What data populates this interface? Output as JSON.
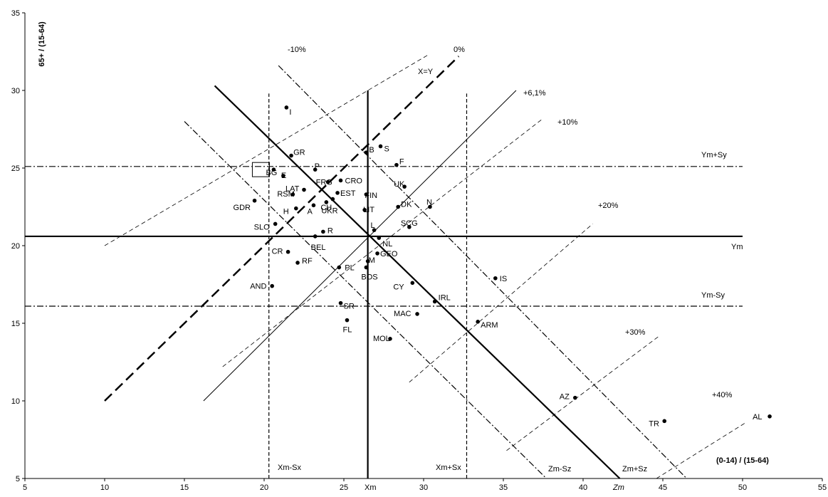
{
  "chart_data": {
    "type": "scatter",
    "xlabel": "(0-14) / (15-64)",
    "ylabel": "65+ / (15-64)",
    "xlim": [
      5,
      55
    ],
    "ylim": [
      5,
      35
    ],
    "x_ticks": [
      5,
      10,
      15,
      20,
      25,
      30,
      35,
      40,
      45,
      50,
      55
    ],
    "y_ticks": [
      5,
      10,
      15,
      20,
      25,
      30,
      35
    ],
    "grid": false,
    "means": {
      "Xm": 26.5,
      "Ym": 20.6,
      "Sx": 6.2,
      "Sy": 4.5
    },
    "points": [
      {
        "label": "I",
        "x": 21.4,
        "y": 28.9
      },
      {
        "label": "GR",
        "x": 21.7,
        "y": 25.8
      },
      {
        "label": "BG",
        "x": 20.6,
        "y": 24.9
      },
      {
        "label": "E",
        "x": 21.2,
        "y": 24.5
      },
      {
        "label": "P",
        "x": 23.2,
        "y": 24.9
      },
      {
        "label": "CRO",
        "x": 24.8,
        "y": 24.2
      },
      {
        "label": "FRG",
        "x": 24.0,
        "y": 24.1
      },
      {
        "label": "LAT",
        "x": 22.5,
        "y": 23.6
      },
      {
        "label": "EST",
        "x": 24.6,
        "y": 23.4
      },
      {
        "label": "RSM",
        "x": 21.8,
        "y": 23.3
      },
      {
        "label": "GDR",
        "x": 19.4,
        "y": 22.9
      },
      {
        "label": "H",
        "x": 22.0,
        "y": 22.4
      },
      {
        "label": "A",
        "x": 23.1,
        "y": 22.6
      },
      {
        "label": "CH",
        "x": 23.9,
        "y": 22.8
      },
      {
        "label": "UKR",
        "x": 24.3,
        "y": 23.0
      },
      {
        "label": "SLO",
        "x": 20.7,
        "y": 21.4
      },
      {
        "label": "R",
        "x": 23.7,
        "y": 20.9
      },
      {
        "label": "BEL",
        "x": 23.2,
        "y": 20.6
      },
      {
        "label": "CR",
        "x": 21.5,
        "y": 19.6
      },
      {
        "label": "RF",
        "x": 22.1,
        "y": 18.9
      },
      {
        "label": "PL",
        "x": 24.7,
        "y": 18.6
      },
      {
        "label": "AND",
        "x": 20.5,
        "y": 17.4
      },
      {
        "label": "S",
        "x": 27.3,
        "y": 26.4
      },
      {
        "label": "B",
        "x": 26.4,
        "y": 26.0
      },
      {
        "label": "F",
        "x": 28.3,
        "y": 25.2
      },
      {
        "label": "UK",
        "x": 28.8,
        "y": 23.8
      },
      {
        "label": "FIN",
        "x": 26.4,
        "y": 23.3
      },
      {
        "label": "DK",
        "x": 28.4,
        "y": 22.5
      },
      {
        "label": "N",
        "x": 30.4,
        "y": 22.5
      },
      {
        "label": "LIT",
        "x": 26.3,
        "y": 22.3
      },
      {
        "label": "L",
        "x": 26.9,
        "y": 21.0
      },
      {
        "label": "SCG",
        "x": 29.1,
        "y": 21.2
      },
      {
        "label": "NL",
        "x": 27.2,
        "y": 20.5
      },
      {
        "label": "GEO",
        "x": 27.1,
        "y": 19.5
      },
      {
        "label": "M",
        "x": 26.5,
        "y": 19.0
      },
      {
        "label": "BOS",
        "x": 26.4,
        "y": 18.6
      },
      {
        "label": "IS",
        "x": 34.5,
        "y": 17.9
      },
      {
        "label": "CY",
        "x": 29.3,
        "y": 17.6
      },
      {
        "label": "IRL",
        "x": 30.7,
        "y": 16.4
      },
      {
        "label": "SR",
        "x": 24.8,
        "y": 16.3
      },
      {
        "label": "MAC",
        "x": 29.6,
        "y": 15.6
      },
      {
        "label": "ARM",
        "x": 33.4,
        "y": 15.1
      },
      {
        "label": "FL",
        "x": 25.2,
        "y": 15.2
      },
      {
        "label": "MOL",
        "x": 27.9,
        "y": 14.0
      },
      {
        "label": "AZ",
        "x": 39.5,
        "y": 10.2
      },
      {
        "label": "TR",
        "x": 45.1,
        "y": 8.7
      },
      {
        "label": "AL",
        "x": 51.7,
        "y": 9.0
      }
    ],
    "line_labels": {
      "xy": "X=Y",
      "xm": "Xm",
      "ym": "Ym",
      "xm_minus_sx": "Xm-Sx",
      "xm_plus_sx": "Xm+Sx",
      "ym_plus_sy": "Ym+Sy",
      "ym_minus_sy": "Ym-Sy",
      "zm": "Zm",
      "zm_minus_sz": "Zm-Sz",
      "zm_plus_sz": "Zm+Sz",
      "p_minus10": "-10%",
      "p_0": "0%",
      "p_6_1": "+6,1%",
      "p_10": "+10%",
      "p_20": "+20%",
      "p_30": "+30%",
      "p_40": "+40%"
    }
  }
}
